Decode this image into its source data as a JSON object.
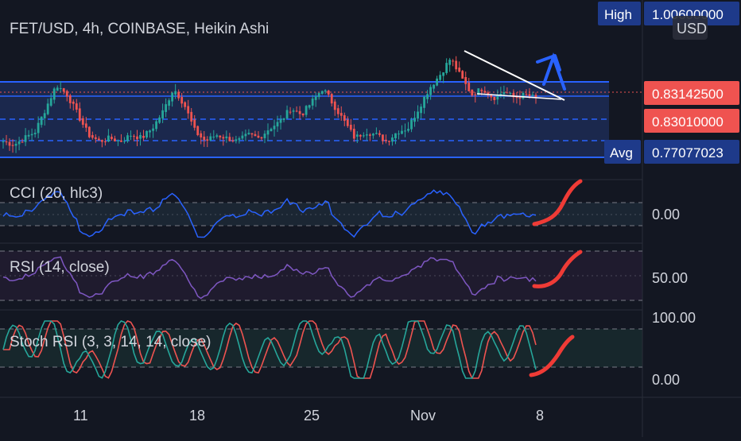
{
  "chart_title": "FET/USD, 4h, COINBASE, Heikin Ashi",
  "currency_badge": "USD",
  "price_axis": {
    "high": {
      "label": "High",
      "value": "1.00600000"
    },
    "last_price": {
      "value": "0.83142500",
      "color": "#ef5350"
    },
    "prev_close": {
      "value": "0.83010000",
      "color": "#ef5350"
    },
    "avg": {
      "label": "Avg",
      "value": "0.77077023"
    }
  },
  "x_ticks": [
    "11",
    "18",
    "25",
    "Nov",
    "8"
  ],
  "indicators": {
    "cci": {
      "title": "CCI (20, hlc3)",
      "axis_label": "0.00",
      "color": "#2962ff"
    },
    "rsi": {
      "title": "RSI (14, close)",
      "axis_label": "50.00",
      "color": "#7e57c2"
    },
    "stoch": {
      "title": "Stoch RSI (3, 3, 14, 14, close)",
      "axis_labels": [
        "100.00",
        "0.00"
      ],
      "k_color": "#26a69a",
      "d_color": "#ef5350"
    }
  },
  "colors": {
    "background": "#131722",
    "bull": "#26a69a",
    "bear": "#ef5350",
    "range_lines": "#2962ff",
    "annotation_arrow": "#2962ff",
    "annotation_ticks": "#ef3b36",
    "trendline": "#ffffff"
  },
  "chart_data": {
    "type": "candlestick",
    "title": "FET/USD, 4h, COINBASE, Heikin Ashi",
    "x_ticks": [
      "11",
      "18",
      "25",
      "Nov",
      "8"
    ],
    "ylim": [
      0.6,
      1.1
    ],
    "range_levels": {
      "upper": 0.874,
      "mid_dashed": 0.8,
      "lower_dashed": 0.74,
      "bottom": 0.66
    },
    "last_price": 0.831425,
    "high": 1.006,
    "avg": 0.77077023,
    "series": [
      {
        "name": "FET/USD",
        "ohlc_path": [
          0.7,
          0.69,
          0.71,
          0.73,
          0.8,
          0.87,
          0.84,
          0.78,
          0.72,
          0.7,
          0.71,
          0.7,
          0.72,
          0.71,
          0.74,
          0.79,
          0.86,
          0.81,
          0.73,
          0.7,
          0.72,
          0.71,
          0.7,
          0.72,
          0.71,
          0.74,
          0.76,
          0.8,
          0.78,
          0.82,
          0.86,
          0.81,
          0.76,
          0.71,
          0.73,
          0.72,
          0.7,
          0.73,
          0.74,
          0.8,
          0.86,
          0.9,
          0.95,
          0.89,
          0.84,
          0.86,
          0.83,
          0.85,
          0.83,
          0.84,
          0.83
        ]
      }
    ]
  }
}
